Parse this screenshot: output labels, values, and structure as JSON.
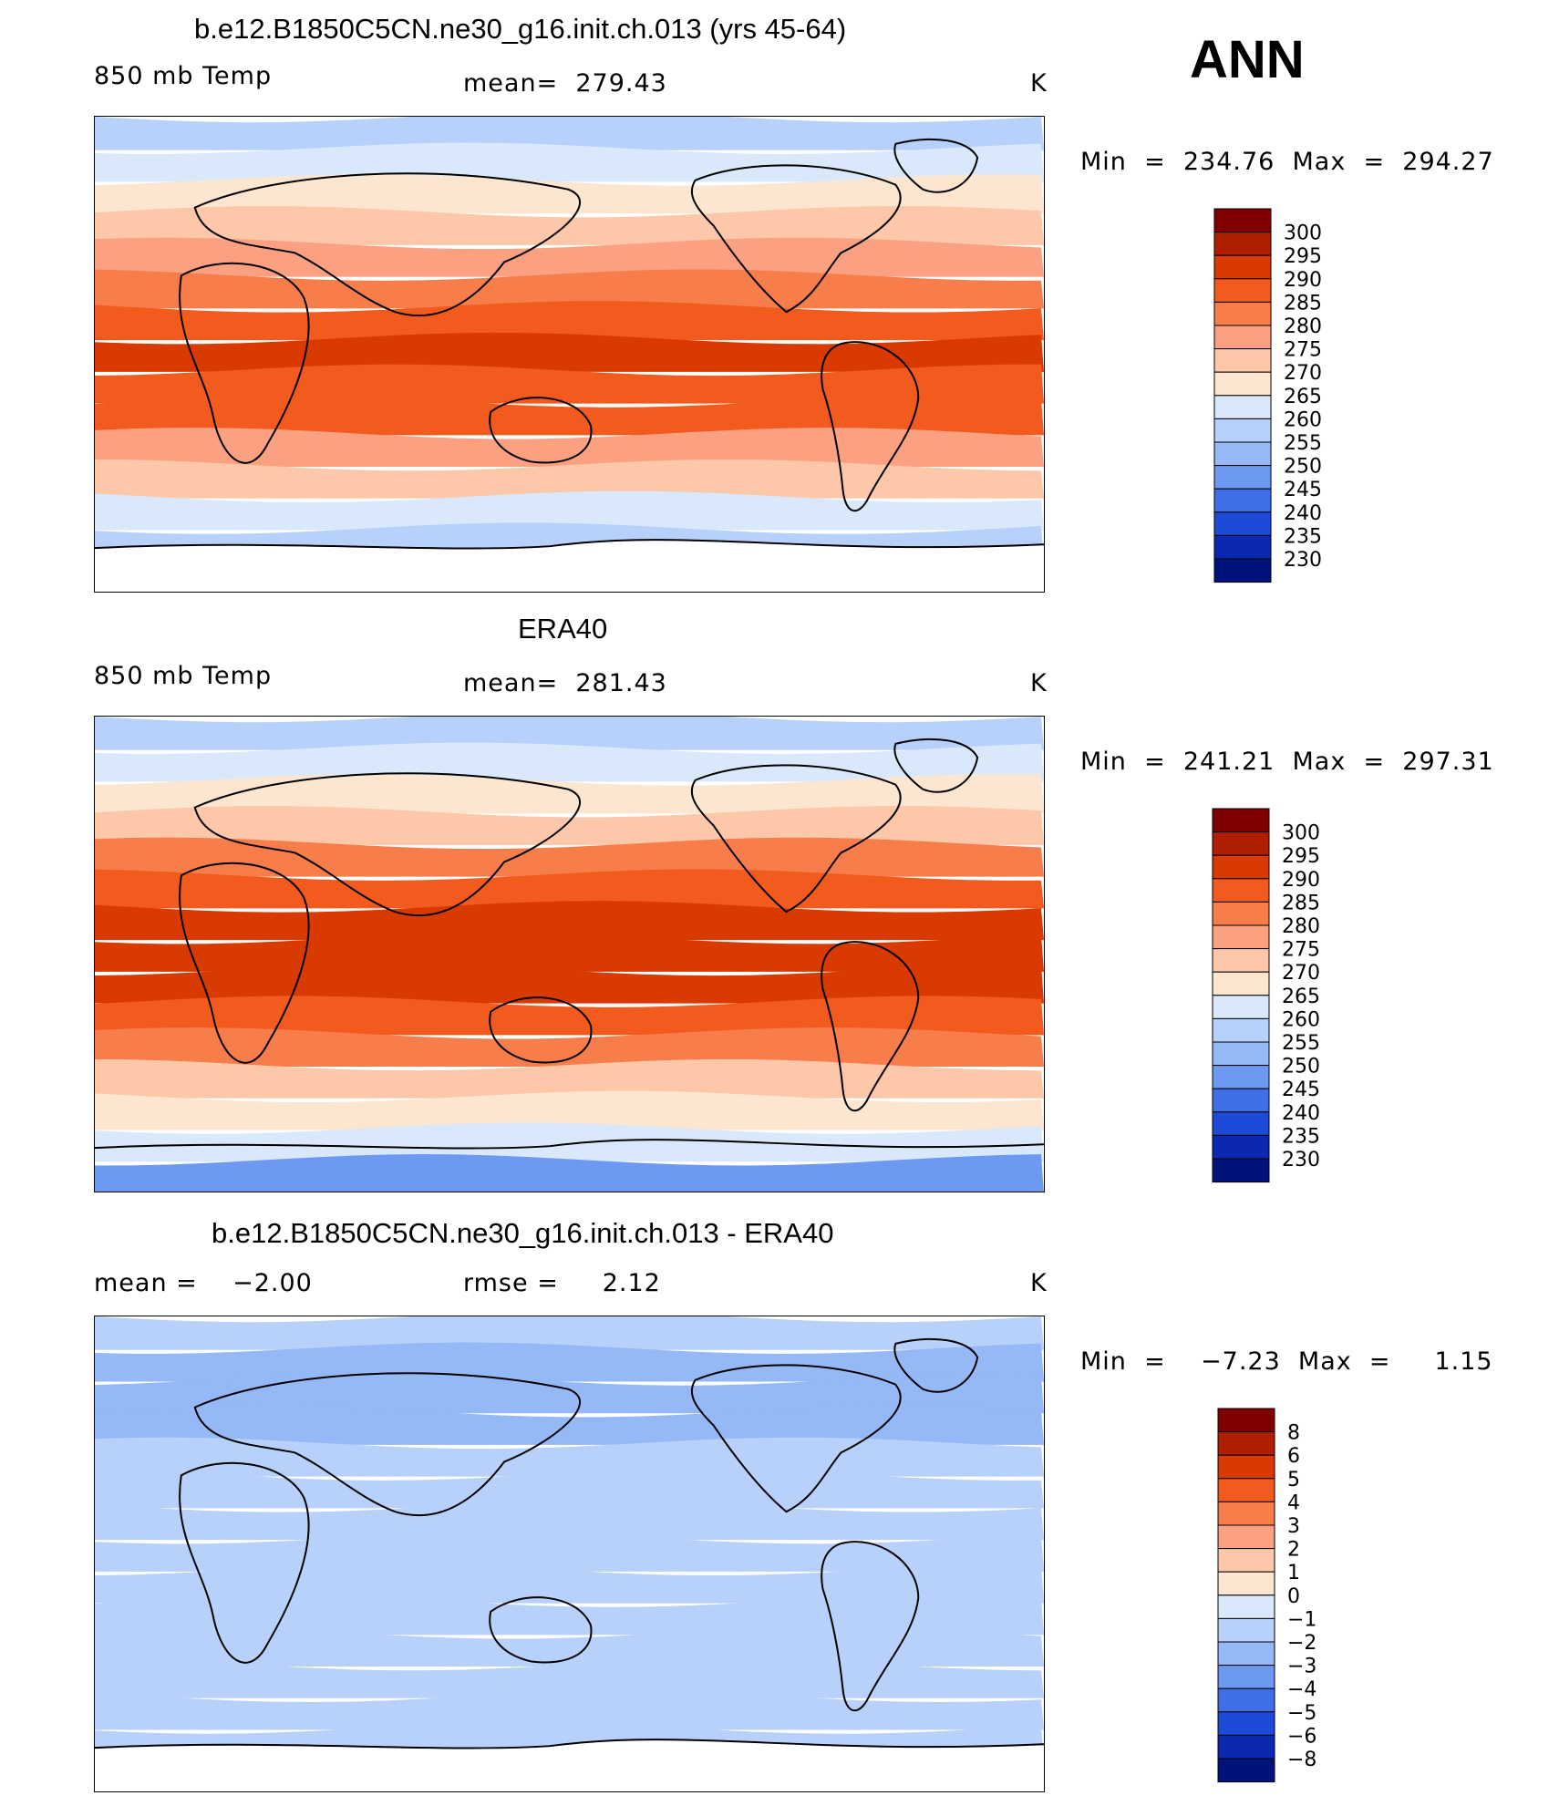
{
  "season": "ANN",
  "panels": [
    {
      "id": "model",
      "title": "b.e12.B1850C5CN.ne30_g16.init.ch.013 (yrs 45-64)",
      "left_label": "850 mb Temp",
      "center_label": "mean=  279.43",
      "units": "K",
      "minmax": "Min  =  234.76  Max  =  294.27",
      "levels": [
        "300",
        "295",
        "290",
        "285",
        "280",
        "275",
        "270",
        "265",
        "260",
        "255",
        "250",
        "245",
        "240",
        "235",
        "230"
      ]
    },
    {
      "id": "obs",
      "title": "ERA40",
      "left_label": "850 mb Temp",
      "center_label": "mean=  281.43",
      "units": "K",
      "minmax": "Min  =  241.21  Max  =  297.31",
      "levels": [
        "300",
        "295",
        "290",
        "285",
        "280",
        "275",
        "270",
        "265",
        "260",
        "255",
        "250",
        "245",
        "240",
        "235",
        "230"
      ]
    },
    {
      "id": "diff",
      "title": "b.e12.B1850C5CN.ne30_g16.init.ch.013 - ERA40",
      "left_label": "mean =    −2.00",
      "center_label": "rmse =     2.12",
      "units": "K",
      "minmax": "Min  =    −7.23  Max  =     1.15",
      "levels": [
        "8",
        "6",
        "5",
        "4",
        "3",
        "2",
        "1",
        "0",
        "−1",
        "−2",
        "−3",
        "−4",
        "−5",
        "−6",
        "−8"
      ]
    }
  ],
  "colors": {
    "temp_scale": [
      "#800000",
      "#b01e00",
      "#d93a00",
      "#f25a1e",
      "#f77d4a",
      "#fba080",
      "#fdc7a9",
      "#fde6d0",
      "#d9e9fb",
      "#b7d1fa",
      "#95b8f7",
      "#6d99f2",
      "#3f6ee8",
      "#1e4ad8",
      "#0a28b0",
      "#00137a"
    ],
    "diff_scale": [
      "#800000",
      "#b01e00",
      "#d93a00",
      "#f25a1e",
      "#f77d4a",
      "#fba080",
      "#fdc7a9",
      "#fde6d0",
      "#d9e9fb",
      "#b7d1fa",
      "#95b8f7",
      "#6d99f2",
      "#3f6ee8",
      "#1e4ad8",
      "#0a28b0",
      "#00137a"
    ]
  },
  "chart_data": [
    {
      "type": "heatmap",
      "title": "b.e12.B1850C5CN.ne30_g16.init.ch.013 (yrs 45-64)",
      "variable": "850 mb Temp",
      "units": "K",
      "mean": 279.43,
      "min": 234.76,
      "max": 294.27,
      "contour_levels": [
        230,
        235,
        240,
        245,
        250,
        255,
        260,
        265,
        270,
        275,
        280,
        285,
        290,
        295,
        300
      ],
      "zonal_band_values_north_to_south": [
        257,
        262,
        267,
        272,
        278,
        284,
        289,
        290,
        289,
        285,
        279,
        271,
        264,
        258,
        250
      ]
    },
    {
      "type": "heatmap",
      "title": "ERA40",
      "variable": "850 mb Temp",
      "units": "K",
      "mean": 281.43,
      "min": 241.21,
      "max": 297.31,
      "contour_levels": [
        230,
        235,
        240,
        245,
        250,
        255,
        260,
        265,
        270,
        275,
        280,
        285,
        290,
        295,
        300
      ],
      "zonal_band_values_north_to_south": [
        258,
        262,
        268,
        274,
        280,
        286,
        291,
        292,
        291,
        287,
        281,
        273,
        266,
        260,
        248
      ]
    },
    {
      "type": "heatmap",
      "title": "b.e12.B1850C5CN.ne30_g16.init.ch.013 - ERA40",
      "units": "K",
      "mean": -2.0,
      "rmse": 2.12,
      "min": -7.23,
      "max": 1.15,
      "contour_levels": [
        -8,
        -6,
        -5,
        -4,
        -3,
        -2,
        -1,
        0,
        1,
        2,
        3,
        4,
        5,
        6,
        8
      ],
      "zonal_band_values_north_to_south": [
        -1.5,
        -2.5,
        -2.5,
        -2.5,
        -2,
        -2,
        -1.8,
        -1.5,
        -1.8,
        -2,
        -2,
        -1.5,
        -1.5,
        -1.8,
        -2.2
      ]
    }
  ]
}
